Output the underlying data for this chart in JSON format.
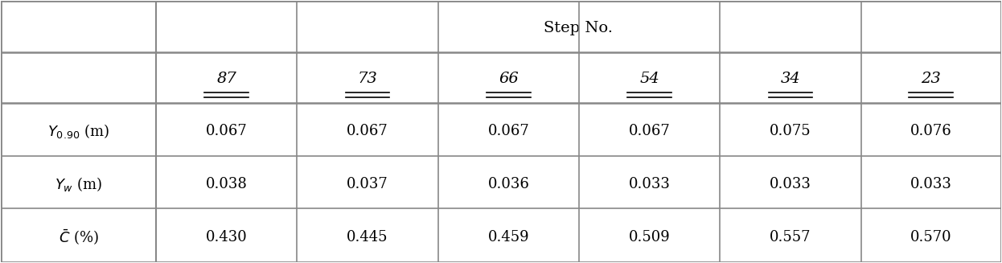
{
  "header_merged": "Step No.",
  "col_headers": [
    "87",
    "73",
    "66",
    "54",
    "34",
    "23"
  ],
  "row_label_display": [
    "$Y_{0.90}$ (m)",
    "$Y_w$ (m)",
    "$\\bar{C}$ (%)"
  ],
  "data": [
    [
      "0.067",
      "0.067",
      "0.067",
      "0.067",
      "0.075",
      "0.076"
    ],
    [
      "0.038",
      "0.037",
      "0.036",
      "0.033",
      "0.033",
      "0.033"
    ],
    [
      "0.430",
      "0.445",
      "0.459",
      "0.509",
      "0.557",
      "0.570"
    ]
  ],
  "bg_color": "#ffffff",
  "line_color": "#888888",
  "text_color": "#000000",
  "font_size": 13,
  "header_font_size": 14,
  "col_header_font_size": 14
}
